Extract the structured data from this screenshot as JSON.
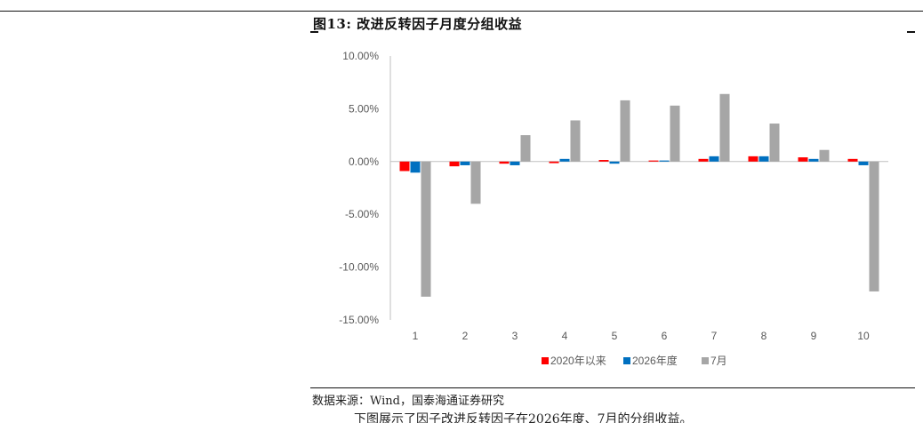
{
  "figure_title": "图13: 改进反转因子月度分组收益",
  "source_text": "数据来源：Wind，国泰海通证券研究",
  "body_text": "下图展示了因子改进反转因子在2026年度、7月的分组收益。",
  "colors": {
    "series_2020": "#ff0000",
    "series_2026": "#0070c0",
    "series_july": "#a6a6a6",
    "axis": "#bfbfbf",
    "label": "#595959"
  },
  "chart_data": {
    "type": "bar",
    "categories": [
      "1",
      "2",
      "3",
      "4",
      "5",
      "6",
      "7",
      "8",
      "9",
      "10"
    ],
    "series": [
      {
        "name": "2020年以来",
        "values": [
          -0.9,
          -0.45,
          -0.2,
          -0.15,
          0.15,
          0.1,
          0.25,
          0.5,
          0.4,
          0.25
        ]
      },
      {
        "name": "2026年度",
        "values": [
          -1.05,
          -0.35,
          -0.35,
          0.25,
          -0.2,
          0.1,
          0.5,
          0.5,
          0.25,
          -0.35
        ]
      },
      {
        "name": "7月",
        "values": [
          -12.8,
          -4.0,
          2.5,
          3.9,
          5.8,
          5.3,
          6.4,
          3.6,
          1.1,
          -12.3
        ]
      }
    ],
    "yticks": [
      "10.00%",
      "5.00%",
      "0.00%",
      "-5.00%",
      "-10.00%",
      "-15.00%"
    ],
    "ylim": [
      -15,
      10
    ],
    "legend_position": "bottom",
    "grid": false
  }
}
